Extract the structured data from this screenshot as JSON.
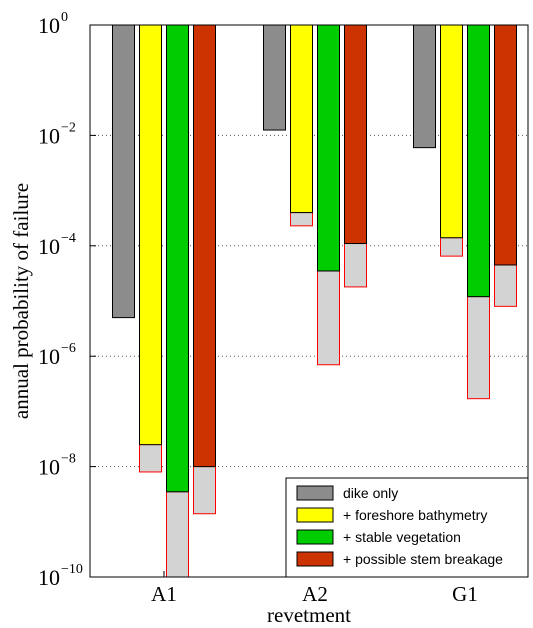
{
  "chart_data": {
    "type": "bar",
    "xlabel": "revetment",
    "ylabel": "annual probability of failure",
    "yscale": "log",
    "ylim": [
      1e-10,
      1
    ],
    "grid": "horizontal dotted at major ticks",
    "yticks": [
      {
        "value": 1,
        "base": "10",
        "exp": "0"
      },
      {
        "value": 0.01,
        "base": "10",
        "exp": "−2"
      },
      {
        "value": 0.0001,
        "base": "10",
        "exp": "−4"
      },
      {
        "value": 1e-06,
        "base": "10",
        "exp": "−6"
      },
      {
        "value": 1e-08,
        "base": "10",
        "exp": "−8"
      },
      {
        "value": 1e-10,
        "base": "10",
        "exp": "−10"
      }
    ],
    "categories": [
      "A1",
      "A2",
      "G1"
    ],
    "series": [
      {
        "name": "dike only",
        "color": "#8c8c8c",
        "values": [
          5e-06,
          0.0125,
          0.006
        ],
        "upper_bound": [
          null,
          null,
          null
        ]
      },
      {
        "name": "+ foreshore bathymetry",
        "color": "#ffff00",
        "values": [
          2.5e-08,
          0.0004,
          0.00014
        ],
        "upper_bound": [
          8e-09,
          0.00023,
          6.5e-05
        ]
      },
      {
        "name": "+ stable vegetation",
        "color": "#00cc00",
        "values": [
          3.5e-09,
          3.5e-05,
          1.2e-05
        ],
        "upper_bound": [
          1e-10,
          7e-07,
          1.7e-07
        ]
      },
      {
        "name": "+ possible stem breakage",
        "color": "#cc3300",
        "values": [
          1e-08,
          0.00011,
          4.5e-05
        ],
        "upper_bound": [
          1.4e-09,
          1.8e-05,
          8e-06
        ]
      }
    ],
    "legend": "bottom-right",
    "uncertainty_color": "#d3d3d3",
    "uncertainty_edge": "#ff0000"
  }
}
